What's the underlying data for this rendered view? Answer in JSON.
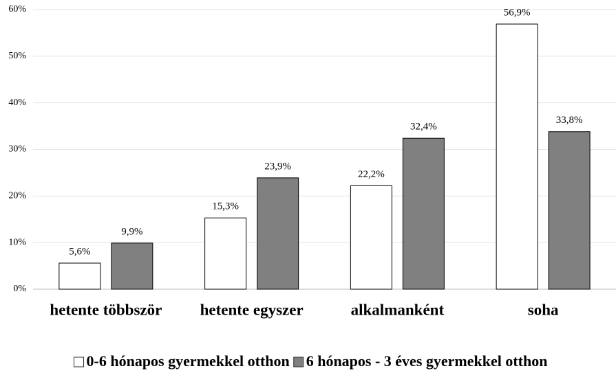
{
  "chart_data": {
    "type": "bar",
    "categories": [
      "hetente többször",
      "hetente egyszer",
      "alkalmanként",
      "soha"
    ],
    "series": [
      {
        "name": "0-6 hónapos gyermekkel otthon",
        "color": "#ffffff",
        "values": [
          5.6,
          15.3,
          22.2,
          56.9
        ],
        "value_labels": [
          "5,6%",
          "15,3%",
          "22,2%",
          "56,9%"
        ]
      },
      {
        "name": "6 hónapos - 3 éves gyermekkel otthon",
        "color": "#808080",
        "values": [
          9.9,
          23.9,
          32.4,
          33.8
        ],
        "value_labels": [
          "9,9%",
          "23,9%",
          "32,4%",
          "33,8%"
        ]
      }
    ],
    "ylim": [
      0,
      60
    ],
    "yticks": [
      {
        "value": 0,
        "label": "0%"
      },
      {
        "value": 10,
        "label": "10%"
      },
      {
        "value": 20,
        "label": "20%"
      },
      {
        "value": 30,
        "label": "30%"
      },
      {
        "value": 40,
        "label": "40%"
      },
      {
        "value": 50,
        "label": "50%"
      },
      {
        "value": 60,
        "label": "60%"
      }
    ],
    "grid": true,
    "legend": "bottom"
  }
}
